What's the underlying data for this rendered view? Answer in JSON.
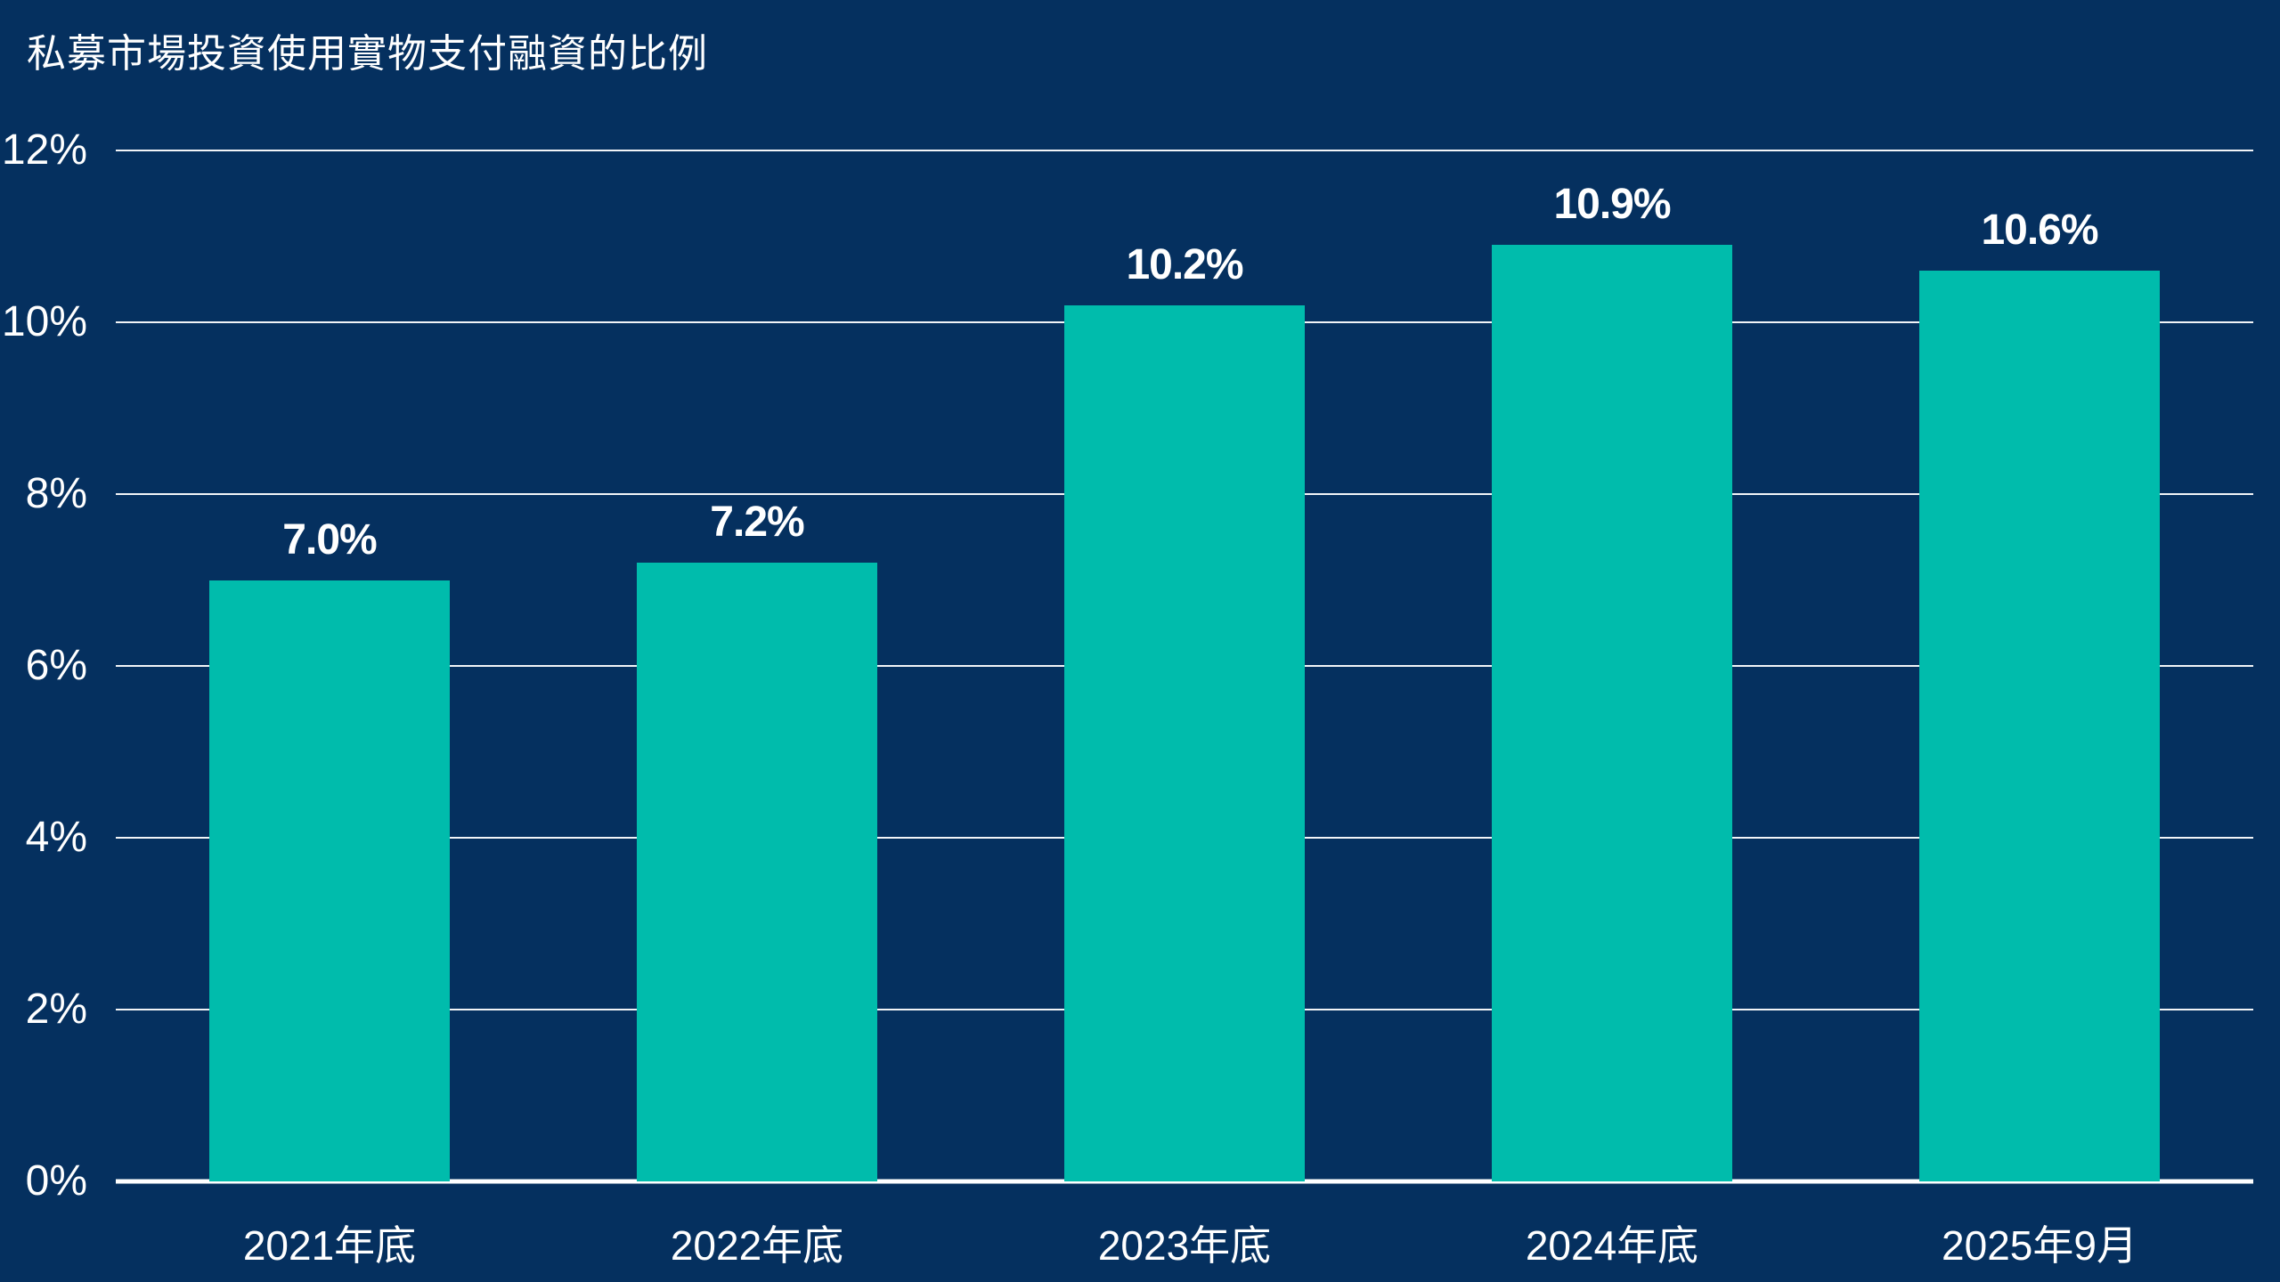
{
  "page": {
    "title": "私募市場投資使用實物支付融資的比例"
  },
  "colors": {
    "background": "#05305F",
    "bar": "#00BCAC",
    "grid": "#FFFFFF",
    "text": "#FFFFFF"
  },
  "chart_data": {
    "type": "bar",
    "title": "私募市場投資使用實物支付融資的比例",
    "categories": [
      "2021年底",
      "2022年底",
      "2023年底",
      "2024年底",
      "2025年9月"
    ],
    "values": [
      7.0,
      7.2,
      10.2,
      10.9,
      10.6
    ],
    "value_labels": [
      "7.0%",
      "7.2%",
      "10.2%",
      "10.9%",
      "10.6%"
    ],
    "xlabel": "",
    "ylabel": "",
    "ylim": [
      0,
      12
    ],
    "yticks": [
      0,
      2,
      4,
      6,
      8,
      10,
      12
    ],
    "ytick_labels": [
      "0%",
      "2%",
      "4%",
      "6%",
      "8%",
      "10%",
      "12%"
    ],
    "grid": true,
    "legend": false
  }
}
